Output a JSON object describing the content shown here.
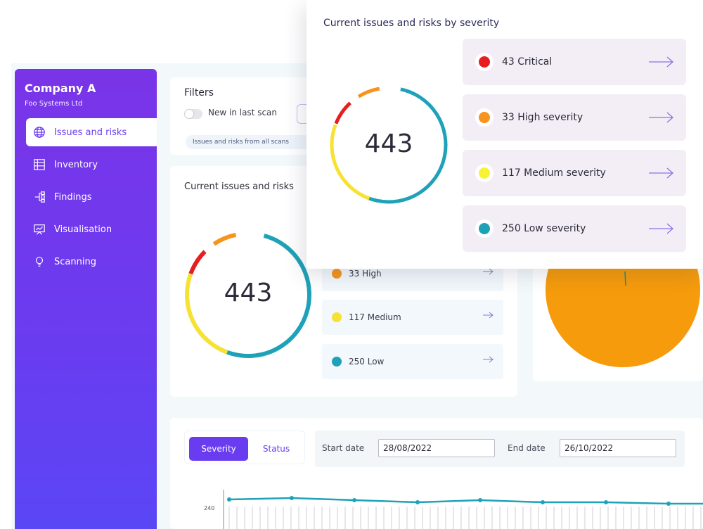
{
  "colors": {
    "critical": "#e81e1e",
    "high": "#f7941d",
    "medium": "#f7e233",
    "low": "#1fa2b8",
    "accent": "#6a3cf0",
    "pie": "#f59b0c"
  },
  "sidebar": {
    "company": "Company A",
    "subtitle": "Foo Systems Ltd",
    "items": [
      {
        "label": "Issues and risks",
        "icon": "globe-icon"
      },
      {
        "label": "Inventory",
        "icon": "grid-icon"
      },
      {
        "label": "Findings",
        "icon": "tree-icon"
      },
      {
        "label": "Visualisation",
        "icon": "presentation-icon"
      },
      {
        "label": "Scanning",
        "icon": "bulb-icon"
      }
    ]
  },
  "filters": {
    "title": "Filters",
    "toggle_label": "New in last scan",
    "chip": "Issues and risks from all scans"
  },
  "issues": {
    "title": "Current issues and risks",
    "total": "443",
    "legend": [
      {
        "label": "33 High",
        "key": "high"
      },
      {
        "label": "117 Medium",
        "key": "medium"
      },
      {
        "label": "250 Low",
        "key": "low"
      }
    ]
  },
  "trend": {
    "tabs": [
      "Severity",
      "Status"
    ],
    "start_label": "Start date",
    "start_value": "28/08/2022",
    "end_label": "End date",
    "end_value": "26/10/2022",
    "y_tick": "240"
  },
  "popup": {
    "title": "Current issues and risks by severity",
    "total": "443",
    "items": [
      {
        "label": "43 Critical",
        "key": "critical"
      },
      {
        "label": "33 High severity",
        "key": "high"
      },
      {
        "label": "117 Medium severity",
        "key": "medium"
      },
      {
        "label": "250 Low severity",
        "key": "low"
      }
    ]
  }
}
